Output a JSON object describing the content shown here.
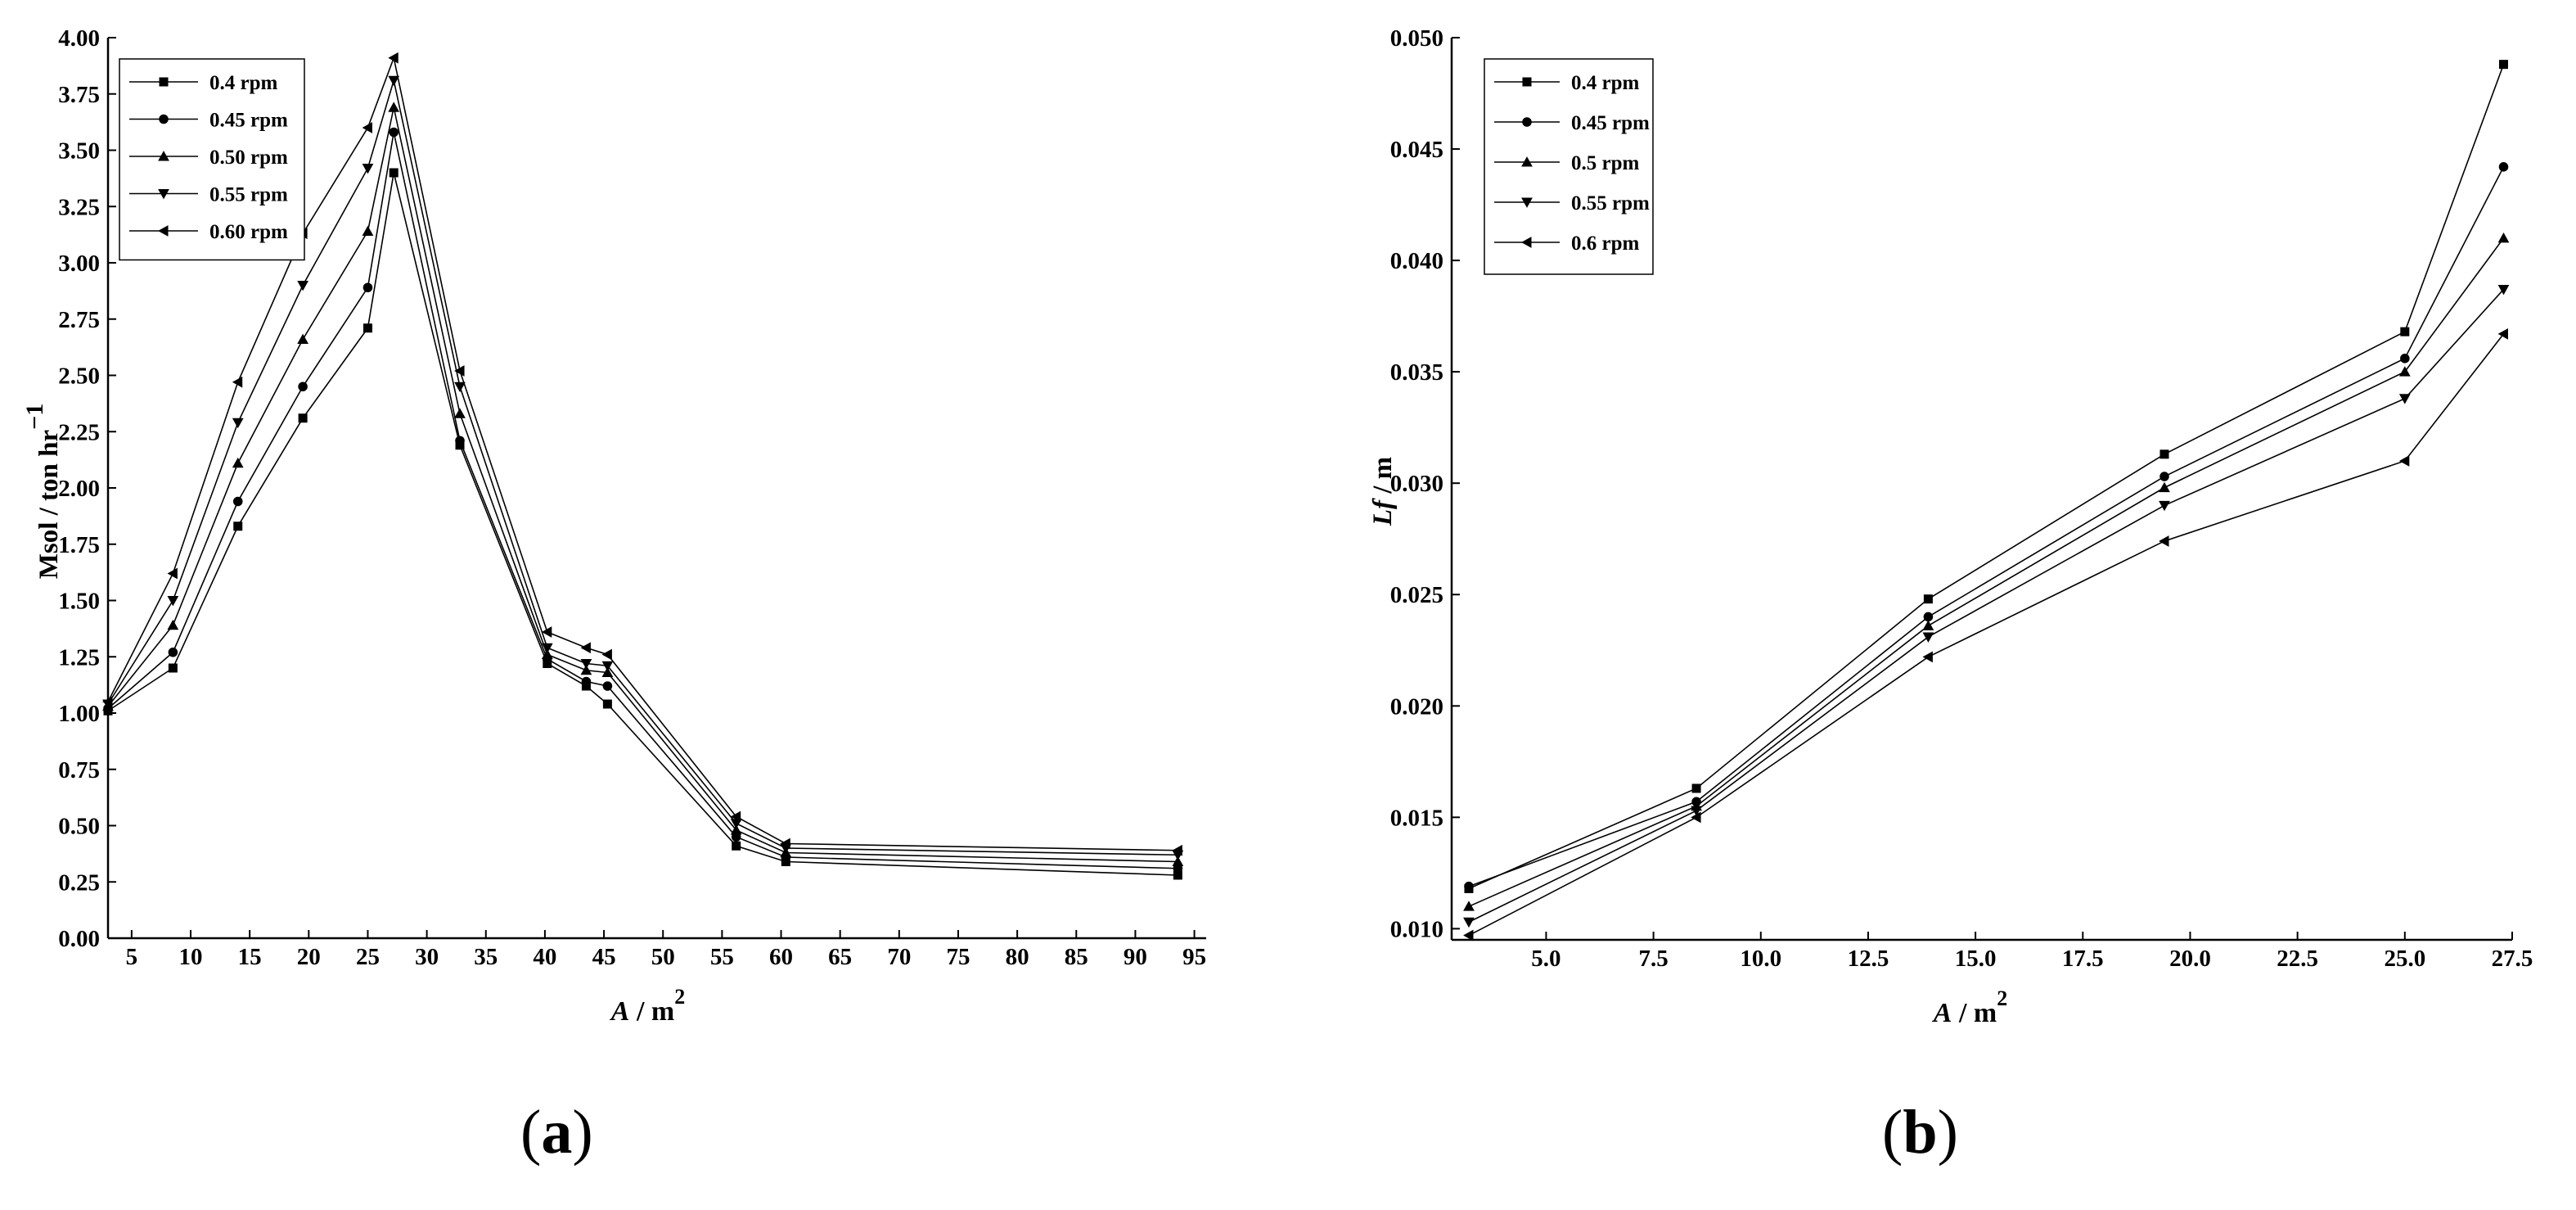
{
  "figure": {
    "panels": [
      {
        "id": "a",
        "caption_open": "(",
        "caption_letter": "a",
        "caption_close": ")"
      },
      {
        "id": "b",
        "caption_open": "(",
        "caption_letter": "b",
        "caption_close": ")"
      }
    ]
  },
  "chart_data": [
    {
      "type": "line",
      "panel": "a",
      "xlabel_main": "A",
      "xlabel_unit": " / m",
      "xlabel_sup": "2",
      "ylabel_main": "Msol / ton hr",
      "ylabel_sup": "−1",
      "xlim": [
        3,
        96
      ],
      "ylim": [
        0,
        4
      ],
      "xticks": [
        5,
        10,
        15,
        20,
        25,
        30,
        35,
        40,
        45,
        50,
        55,
        60,
        65,
        70,
        75,
        80,
        85,
        90,
        95
      ],
      "xtick_labels": [
        "5",
        "10",
        "15",
        "20",
        "25",
        "30",
        "35",
        "40",
        "45",
        "50",
        "55",
        "60",
        "65",
        "70",
        "75",
        "80",
        "85",
        "90",
        "95"
      ],
      "yticks": [
        0,
        0.25,
        0.5,
        0.75,
        1.0,
        1.25,
        1.5,
        1.75,
        2.0,
        2.25,
        2.5,
        2.75,
        3.0,
        3.25,
        3.5,
        3.75,
        4.0
      ],
      "ytick_labels": [
        "0.00",
        "0.25",
        "0.50",
        "0.75",
        "1.00",
        "1.25",
        "1.50",
        "1.75",
        "2.00",
        "2.25",
        "2.50",
        "2.75",
        "3.00",
        "3.25",
        "3.50",
        "3.75",
        "4.00"
      ],
      "grid": false,
      "legend_position": "top-left",
      "series": [
        {
          "name": "0.4 rpm",
          "marker": "square",
          "x": [
            3,
            8.5,
            14,
            19.5,
            25,
            27.2,
            32.8,
            40.2,
            43.5,
            45.3,
            56.2,
            60.4,
            93.6
          ],
          "y": [
            1.01,
            1.2,
            1.83,
            2.31,
            2.71,
            3.4,
            2.19,
            1.22,
            1.12,
            1.04,
            0.41,
            0.34,
            0.28
          ]
        },
        {
          "name": "0.45 rpm",
          "marker": "circle",
          "x": [
            3,
            8.5,
            14,
            19.5,
            25,
            27.2,
            32.8,
            40.2,
            43.5,
            45.3,
            56.2,
            60.4,
            93.6
          ],
          "y": [
            1.02,
            1.27,
            1.94,
            2.45,
            2.89,
            3.58,
            2.21,
            1.24,
            1.14,
            1.12,
            0.45,
            0.36,
            0.31
          ]
        },
        {
          "name": "0.50 rpm",
          "marker": "triangle-up",
          "x": [
            3,
            8.5,
            14,
            19.5,
            25,
            27.2,
            32.8,
            40.2,
            43.5,
            45.3,
            56.2,
            60.4,
            93.6
          ],
          "y": [
            1.03,
            1.39,
            2.11,
            2.66,
            3.14,
            3.69,
            2.33,
            1.26,
            1.19,
            1.18,
            0.48,
            0.38,
            0.34
          ]
        },
        {
          "name": "0.55 rpm",
          "marker": "triangle-down",
          "x": [
            3,
            8.5,
            14,
            19.5,
            25,
            27.2,
            32.8,
            40.2,
            43.5,
            45.3,
            56.2,
            60.4,
            93.6
          ],
          "y": [
            1.04,
            1.5,
            2.29,
            2.9,
            3.42,
            3.81,
            2.45,
            1.29,
            1.22,
            1.21,
            0.51,
            0.4,
            0.37
          ]
        },
        {
          "name": "0.60 rpm",
          "marker": "triangle-left",
          "x": [
            3,
            8.5,
            14,
            19.5,
            25,
            27.2,
            32.8,
            40.2,
            43.5,
            45.3,
            56.2,
            60.4,
            93.6
          ],
          "y": [
            1.05,
            1.62,
            2.47,
            3.13,
            3.6,
            3.91,
            2.52,
            1.36,
            1.29,
            1.26,
            0.54,
            0.42,
            0.39
          ]
        }
      ]
    },
    {
      "type": "line",
      "panel": "b",
      "xlabel_main": "A",
      "xlabel_unit": " / m",
      "xlabel_sup": "2",
      "ylabel_main": "Lf",
      "ylabel_unit": " / m",
      "xlim": [
        2.8,
        27.5
      ],
      "ylim": [
        0.0095,
        0.05
      ],
      "xticks": [
        5.0,
        7.5,
        10.0,
        12.5,
        15.0,
        17.5,
        20.0,
        22.5,
        25.0,
        27.5
      ],
      "xtick_labels": [
        "5.0",
        "7.5",
        "10.0",
        "12.5",
        "15.0",
        "17.5",
        "20.0",
        "22.5",
        "25.0",
        "27.5"
      ],
      "yticks": [
        0.01,
        0.015,
        0.02,
        0.025,
        0.03,
        0.035,
        0.04,
        0.045,
        0.05
      ],
      "ytick_labels": [
        "0.010",
        "0.015",
        "0.020",
        "0.025",
        "0.030",
        "0.035",
        "0.040",
        "0.045",
        "0.050"
      ],
      "grid": false,
      "legend_position": "top-left",
      "series": [
        {
          "name": "0.4 rpm",
          "marker": "square",
          "x": [
            3.2,
            8.5,
            13.9,
            19.4,
            25,
            27.3
          ],
          "y": [
            0.0118,
            0.0163,
            0.0248,
            0.0313,
            0.0368,
            0.0488
          ]
        },
        {
          "name": "0.45 rpm",
          "marker": "circle",
          "x": [
            3.2,
            8.5,
            13.9,
            19.4,
            25,
            27.3
          ],
          "y": [
            0.0119,
            0.0157,
            0.024,
            0.0303,
            0.0356,
            0.0442
          ]
        },
        {
          "name": "0.5 rpm",
          "marker": "triangle-up",
          "x": [
            3.2,
            8.5,
            13.9,
            19.4,
            25,
            27.3
          ],
          "y": [
            0.011,
            0.0155,
            0.0236,
            0.0298,
            0.035,
            0.041
          ]
        },
        {
          "name": "0.55 rpm",
          "marker": "triangle-down",
          "x": [
            3.2,
            8.5,
            13.9,
            19.4,
            25,
            27.3
          ],
          "y": [
            0.0103,
            0.0153,
            0.0231,
            0.029,
            0.0338,
            0.0387
          ]
        },
        {
          "name": "0.6 rpm",
          "marker": "triangle-left",
          "x": [
            3.2,
            8.5,
            13.9,
            19.4,
            25,
            27.3
          ],
          "y": [
            0.0097,
            0.015,
            0.0222,
            0.0274,
            0.031,
            0.0367
          ]
        }
      ]
    }
  ]
}
